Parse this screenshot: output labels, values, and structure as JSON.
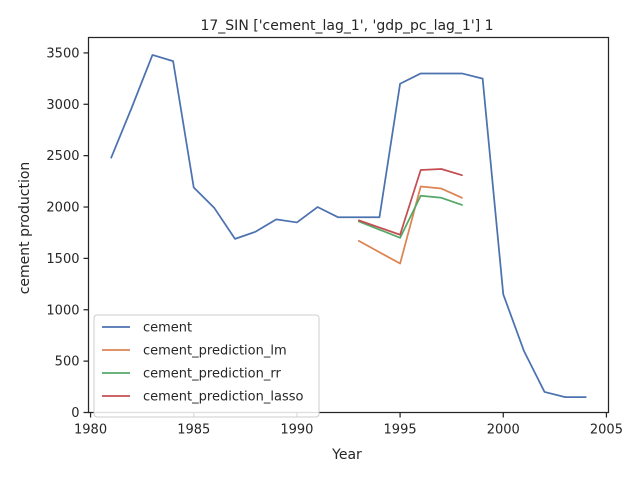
{
  "chart_data": {
    "type": "line",
    "title": "17_SIN ['cement_lag_1', 'gdp_pc_lag_1'] 1",
    "xlabel": "Year",
    "ylabel": "cement production",
    "xlim": [
      1979.9,
      2005.1
    ],
    "ylim": [
      0,
      3650
    ],
    "xticks": [
      1980,
      1985,
      1990,
      1995,
      2000,
      2005
    ],
    "yticks": [
      0,
      500,
      1000,
      1500,
      2000,
      2500,
      3000,
      3500
    ],
    "grid": false,
    "legend_position": "lower-left",
    "series": [
      {
        "name": "cement",
        "color": "#4c72b0",
        "x": [
          1981,
          1982,
          1983,
          1984,
          1985,
          1986,
          1987,
          1988,
          1989,
          1990,
          1991,
          1992,
          1993,
          1994,
          1995,
          1996,
          1997,
          1998,
          1999,
          2000,
          2001,
          2002,
          2003,
          2004
        ],
        "y": [
          2480,
          2970,
          3480,
          3420,
          2190,
          1990,
          1690,
          1760,
          1880,
          1850,
          2000,
          1900,
          1900,
          1900,
          3200,
          3300,
          3300,
          3300,
          3250,
          1150,
          600,
          200,
          150,
          150
        ]
      },
      {
        "name": "cement_prediction_lm",
        "color": "#dd8452",
        "x": [
          1993,
          1995,
          1996,
          1997,
          1998
        ],
        "y": [
          1670,
          1450,
          2200,
          2180,
          2090
        ]
      },
      {
        "name": "cement_prediction_rr",
        "color": "#55a868",
        "x": [
          1993,
          1995,
          1996,
          1997,
          1998
        ],
        "y": [
          1860,
          1700,
          2110,
          2090,
          2020
        ]
      },
      {
        "name": "cement_prediction_lasso",
        "color": "#c44e52",
        "x": [
          1993,
          1995,
          1996,
          1997,
          1998
        ],
        "y": [
          1870,
          1730,
          2360,
          2370,
          2310
        ]
      }
    ]
  }
}
